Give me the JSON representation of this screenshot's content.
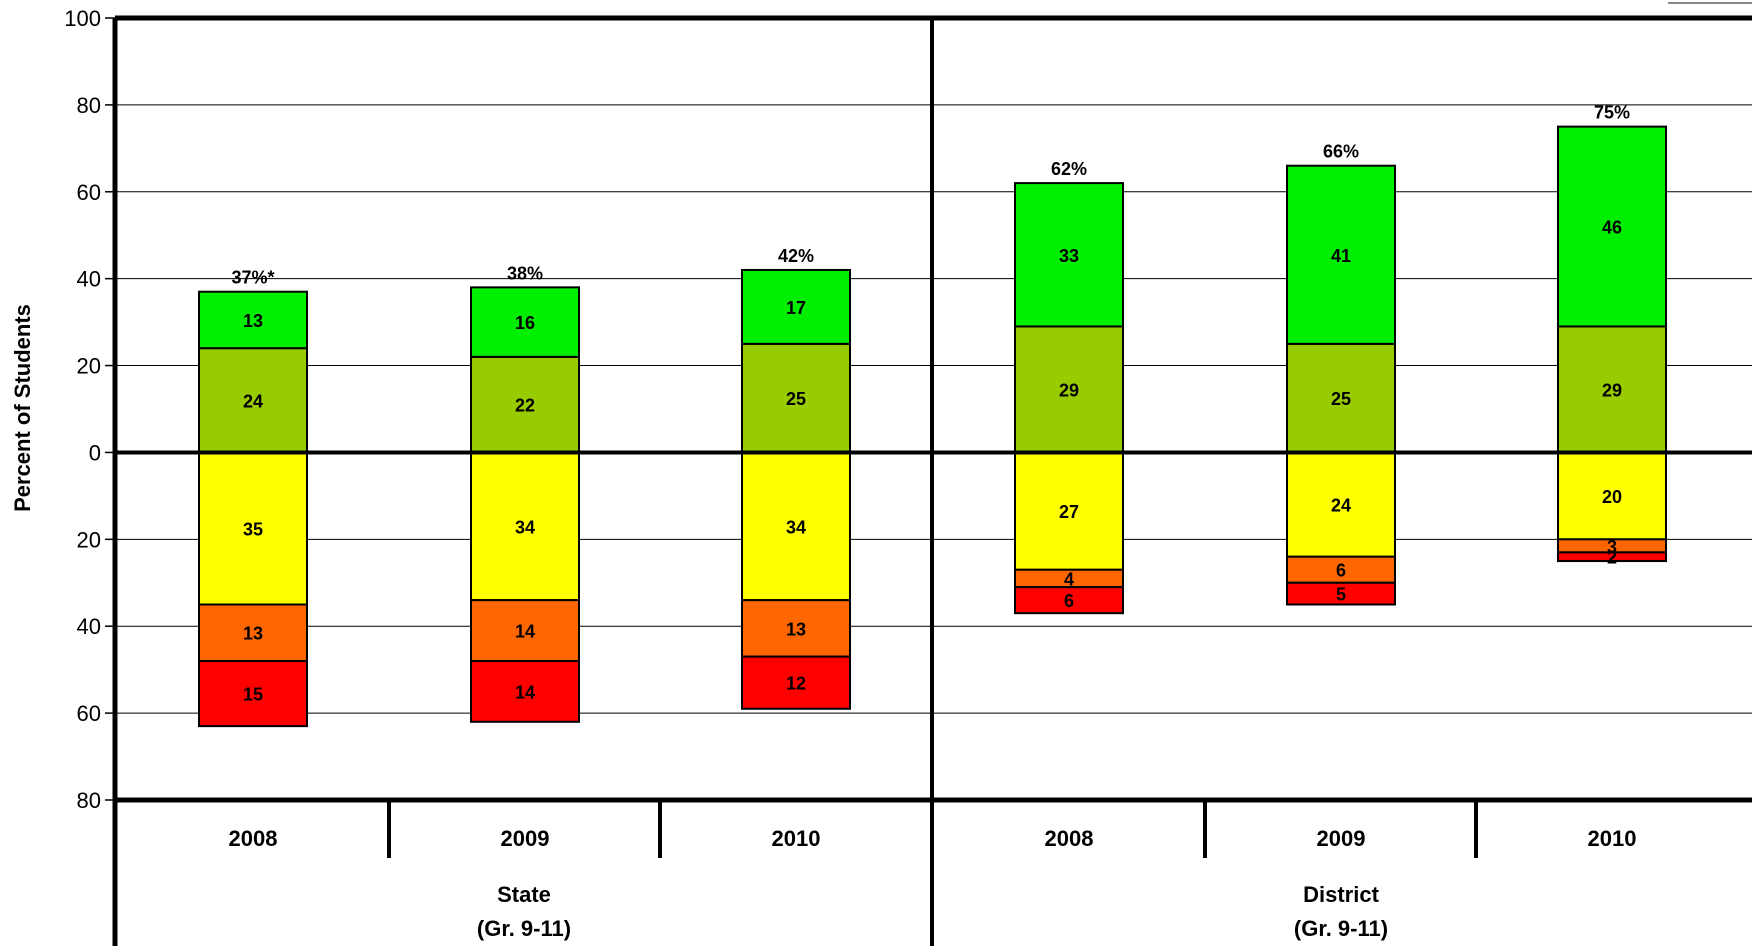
{
  "chart_data": {
    "type": "bar",
    "ylabel": "Percent of Students",
    "ylim_top": 100,
    "ylim_bottom": 80,
    "yticks": [
      {
        "value": 100,
        "label": "100"
      },
      {
        "value": 80,
        "label": "80"
      },
      {
        "value": 60,
        "label": "60"
      },
      {
        "value": 40,
        "label": "40"
      },
      {
        "value": 20,
        "label": "20"
      },
      {
        "value": 0,
        "label": "0"
      },
      {
        "value": -20,
        "label": "20"
      },
      {
        "value": -40,
        "label": "40"
      },
      {
        "value": -60,
        "label": "60"
      },
      {
        "value": -80,
        "label": "80"
      }
    ],
    "groups": [
      {
        "label_line1": "State",
        "label_line2": "(Gr. 9-11)"
      },
      {
        "label_line1": "District",
        "label_line2": "(Gr. 9-11)"
      }
    ],
    "colors": {
      "bright_green": "#00ee00",
      "olive_green": "#99cc00",
      "yellow": "#ffff00",
      "orange": "#ff6600",
      "red": "#ff0000"
    },
    "bars": [
      {
        "year": "2008",
        "group": 0,
        "total_label": "37%*",
        "above": [
          {
            "value": 24,
            "label": "24",
            "color": "olive_green"
          },
          {
            "value": 13,
            "label": "13",
            "color": "bright_green"
          }
        ],
        "below": [
          {
            "value": 35,
            "label": "35",
            "color": "yellow"
          },
          {
            "value": 13,
            "label": "13",
            "color": "orange"
          },
          {
            "value": 15,
            "label": "15",
            "color": "red"
          }
        ]
      },
      {
        "year": "2009",
        "group": 0,
        "total_label": "38%",
        "above": [
          {
            "value": 22,
            "label": "22",
            "color": "olive_green"
          },
          {
            "value": 16,
            "label": "16",
            "color": "bright_green"
          }
        ],
        "below": [
          {
            "value": 34,
            "label": "34",
            "color": "yellow"
          },
          {
            "value": 14,
            "label": "14",
            "color": "orange"
          },
          {
            "value": 14,
            "label": "14",
            "color": "red"
          }
        ]
      },
      {
        "year": "2010",
        "group": 0,
        "total_label": "42%",
        "above": [
          {
            "value": 25,
            "label": "25",
            "color": "olive_green"
          },
          {
            "value": 17,
            "label": "17",
            "color": "bright_green"
          }
        ],
        "below": [
          {
            "value": 34,
            "label": "34",
            "color": "yellow"
          },
          {
            "value": 13,
            "label": "13",
            "color": "orange"
          },
          {
            "value": 12,
            "label": "12",
            "color": "red"
          }
        ]
      },
      {
        "year": "2008",
        "group": 1,
        "total_label": "62%",
        "above": [
          {
            "value": 29,
            "label": "29",
            "color": "olive_green"
          },
          {
            "value": 33,
            "label": "33",
            "color": "bright_green"
          }
        ],
        "below": [
          {
            "value": 27,
            "label": "27",
            "color": "yellow"
          },
          {
            "value": 4,
            "label": "4",
            "color": "orange"
          },
          {
            "value": 6,
            "label": "6",
            "color": "red"
          }
        ]
      },
      {
        "year": "2009",
        "group": 1,
        "total_label": "66%",
        "above": [
          {
            "value": 25,
            "label": "25",
            "color": "olive_green"
          },
          {
            "value": 41,
            "label": "41",
            "color": "bright_green"
          }
        ],
        "below": [
          {
            "value": 24,
            "label": "24",
            "color": "yellow"
          },
          {
            "value": 6,
            "label": "6",
            "color": "orange"
          },
          {
            "value": 5,
            "label": "5",
            "color": "red"
          }
        ]
      },
      {
        "year": "2010",
        "group": 1,
        "total_label": "75%",
        "above": [
          {
            "value": 29,
            "label": "29",
            "color": "olive_green"
          },
          {
            "value": 46,
            "label": "46",
            "color": "bright_green"
          }
        ],
        "below": [
          {
            "value": 20,
            "label": "20",
            "color": "yellow"
          },
          {
            "value": 3,
            "label": "3",
            "color": "orange"
          },
          {
            "value": 2,
            "label": "2",
            "color": "red"
          }
        ]
      }
    ]
  }
}
